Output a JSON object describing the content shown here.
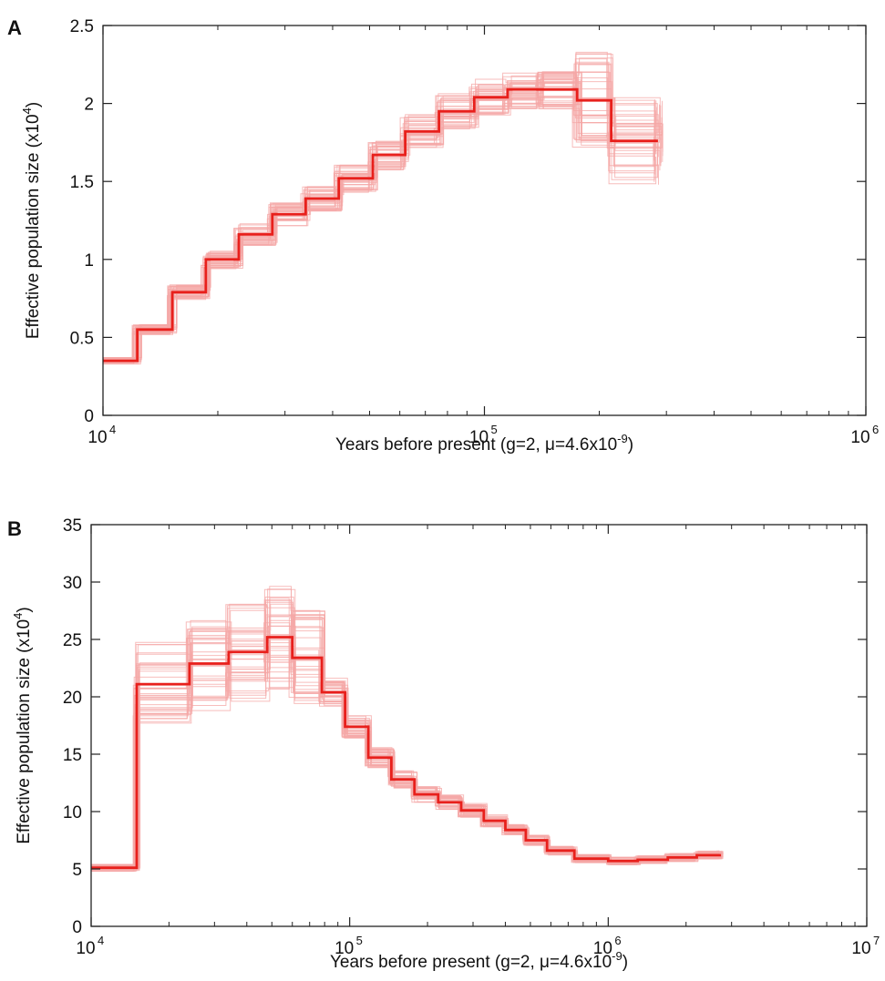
{
  "chart_data": [
    {
      "type": "line",
      "panel": "A",
      "xscale": "log",
      "xlim": [
        10000,
        1000000
      ],
      "ylim": [
        0,
        2.5
      ],
      "y_ticks": [
        "0",
        "0.5",
        "1",
        "1.5",
        "2",
        "2.5"
      ],
      "x_ticks": [
        {
          "base": "10",
          "exp": "4"
        },
        {
          "base": "10",
          "exp": "5"
        },
        {
          "base": "10",
          "exp": "6"
        }
      ],
      "xlabel": {
        "text": "Years before present (g=2, μ=4.6x10",
        "sup": "-9",
        "close": ")"
      },
      "ylabel": {
        "text": "Effective population size (x10",
        "sup": "4",
        "close": ")"
      },
      "grid": false,
      "series": [
        {
          "style": "step",
          "color": "#e8201c",
          "x": [
            10000,
            12300,
            15200,
            18600,
            22700,
            27800,
            34000,
            41500,
            51000,
            62000,
            76000,
            94000,
            115000,
            140000,
            175000,
            215000,
            285000
          ],
          "values": [
            0.35,
            0.55,
            0.79,
            1.0,
            1.16,
            1.29,
            1.39,
            1.52,
            1.67,
            1.82,
            1.95,
            2.04,
            2.09,
            2.09,
            2.02,
            1.76,
            1.76
          ]
        }
      ],
      "bootstrap": {
        "color": "#f4a7a5",
        "count": 40,
        "spread": 0.06,
        "end_spread": 0.16
      }
    },
    {
      "type": "line",
      "panel": "B",
      "xscale": "log",
      "xlim": [
        10000,
        10000000
      ],
      "ylim": [
        0,
        35
      ],
      "y_ticks": [
        "0",
        "5",
        "10",
        "15",
        "20",
        "25",
        "30",
        "35"
      ],
      "x_ticks": [
        {
          "base": "10",
          "exp": "4"
        },
        {
          "base": "10",
          "exp": "5"
        },
        {
          "base": "10",
          "exp": "6"
        },
        {
          "base": "10",
          "exp": "7"
        }
      ],
      "xlabel": {
        "text": "Years before present (g=2, μ=4.6x10",
        "sup": "-9",
        "close": ")"
      },
      "ylabel": {
        "text": "Effective population size (x10",
        "sup": "4",
        "close": ")"
      },
      "grid": false,
      "series": [
        {
          "style": "step",
          "color": "#e8201c",
          "x": [
            10000,
            15000,
            24000,
            34000,
            48000,
            60000,
            78000,
            96000,
            118000,
            145000,
            178000,
            220000,
            270000,
            330000,
            400000,
            480000,
            580000,
            740000,
            1000000,
            1300000,
            1700000,
            2200000,
            2700000
          ],
          "values": [
            5.1,
            21.1,
            22.9,
            23.9,
            25.2,
            23.4,
            20.4,
            17.4,
            14.7,
            12.8,
            11.5,
            10.8,
            10.1,
            9.2,
            8.4,
            7.5,
            6.6,
            5.9,
            5.7,
            5.8,
            6.0,
            6.2,
            6.3
          ]
        }
      ],
      "bootstrap": {
        "color": "#f4a7a5",
        "count": 40,
        "spread": 0.06,
        "early_spread": 0.18
      }
    }
  ],
  "panels": {
    "a_label": "A",
    "b_label": "B"
  }
}
